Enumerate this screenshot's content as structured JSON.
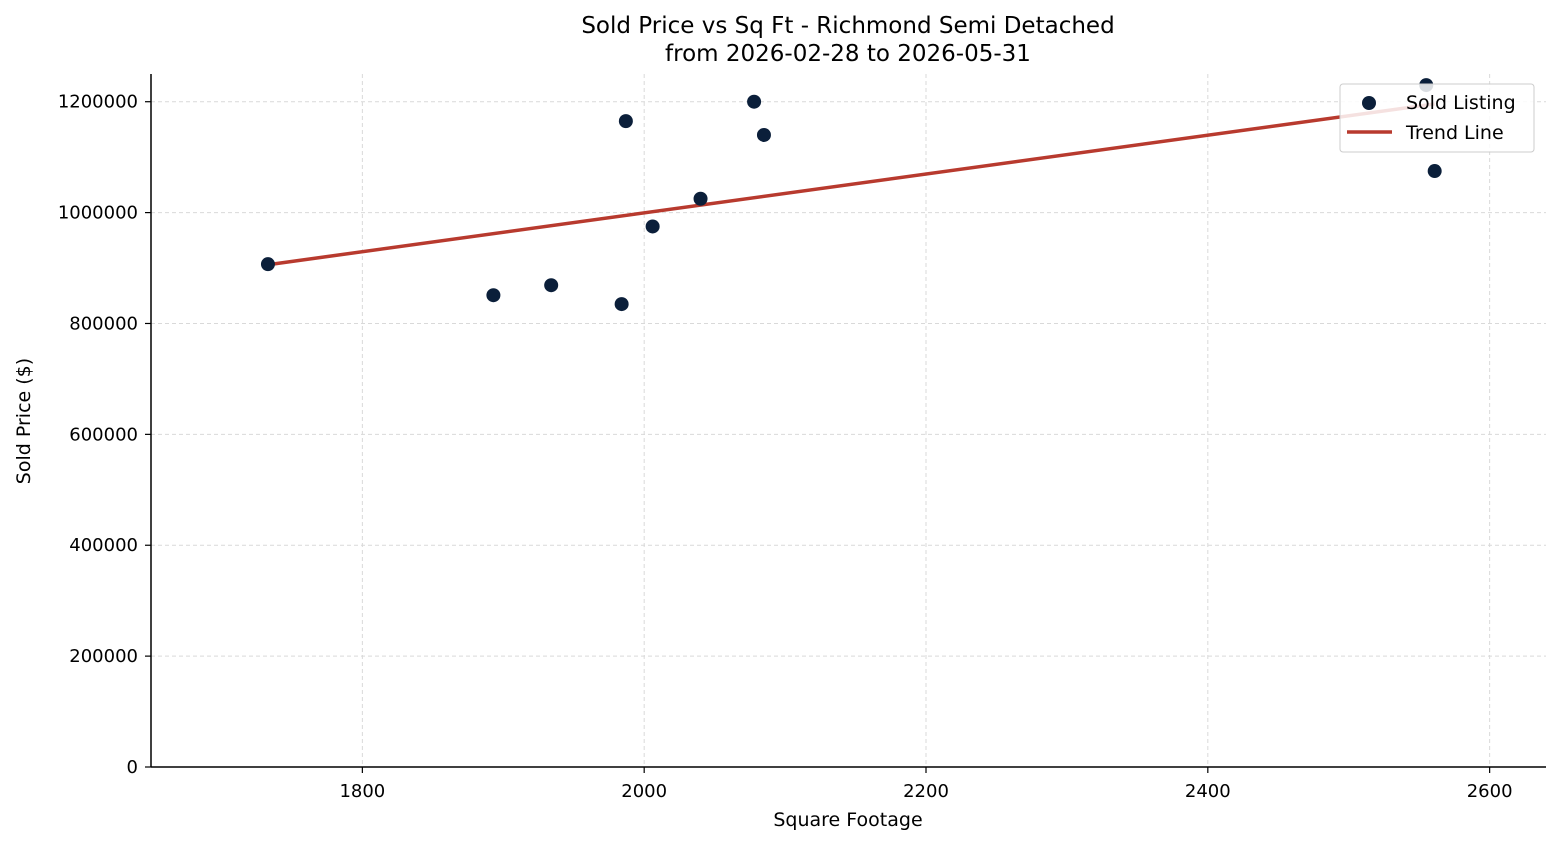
{
  "chart_data": {
    "type": "scatter",
    "title": "Sold Price vs Sq Ft - Richmond Semi Detached",
    "subtitle": "from 2026-02-28 to 2026-05-31",
    "xlabel": "Square Footage",
    "ylabel": "Sold Price ($)",
    "xlim": [
      1650,
      2640
    ],
    "ylim": [
      0,
      1250000
    ],
    "x_ticks": [
      1800,
      2000,
      2200,
      2400,
      2600
    ],
    "y_ticks": [
      0,
      200000,
      400000,
      600000,
      800000,
      1000000,
      1200000
    ],
    "grid": true,
    "legend_position": "top-right",
    "series": [
      {
        "name": "Sold Listing",
        "kind": "scatter",
        "color": "#0b1f3a",
        "x": [
          1733,
          1893,
          1934,
          1984,
          1987,
          2006,
          2040,
          2078,
          2085,
          2555,
          2561
        ],
        "y": [
          907000,
          851000,
          869000,
          835000,
          1165000,
          975000,
          1025000,
          1200000,
          1140000,
          1230000,
          1075000
        ]
      },
      {
        "name": "Trend Line",
        "kind": "line",
        "color": "#b83a2e",
        "x": [
          1733,
          2561
        ],
        "y": [
          906000,
          1196000
        ]
      }
    ]
  }
}
